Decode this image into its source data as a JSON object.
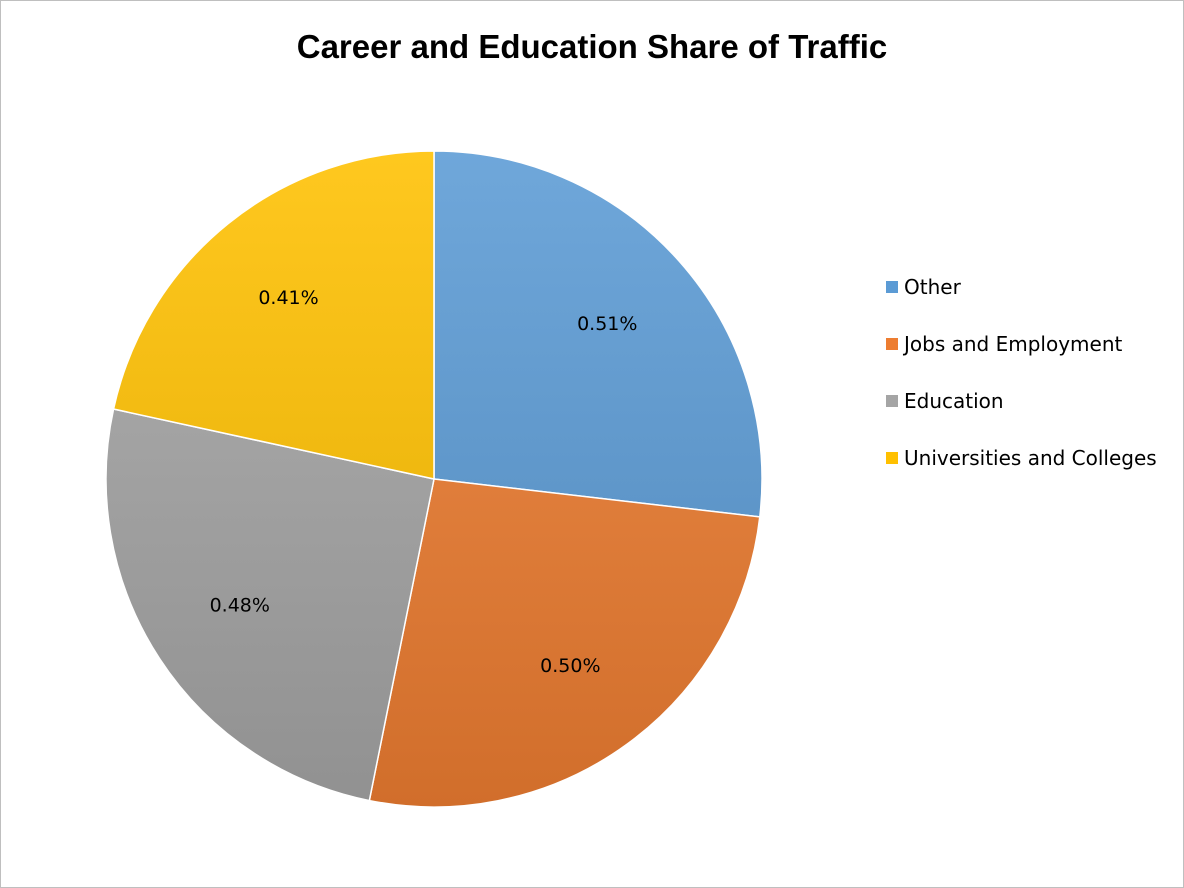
{
  "chart_data": {
    "type": "pie",
    "title": "Career and Education Share of Traffic",
    "categories": [
      "Other",
      "Jobs and Employment",
      "Education",
      "Universities and Colleges"
    ],
    "values": [
      0.51,
      0.5,
      0.48,
      0.41
    ],
    "labels": [
      "0.51%",
      "0.50%",
      "0.48%",
      "0.41%"
    ],
    "colors": [
      "#5B9BD5",
      "#ED7D31",
      "#A5A5A5",
      "#FFC000"
    ],
    "start_angle": "12 o'clock",
    "direction": "clockwise",
    "legend_position": "right"
  }
}
